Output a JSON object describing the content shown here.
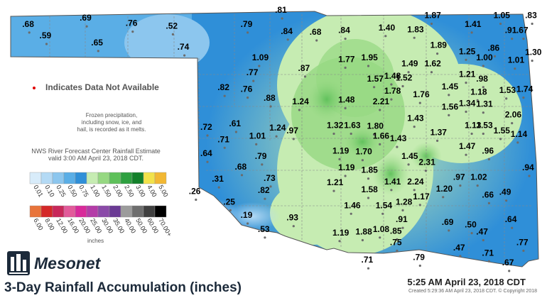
{
  "title": "3-Day Rainfall Accumulation (inches)",
  "timestamp": "5:25 AM April 23, 2018 CDT",
  "created": "Created 5:29:36 AM April 23, 2018 CDT. © Copyright 2018",
  "brand": "Mesonet",
  "na_note": "Indicates Data Not Available",
  "frozen_note": [
    "Frozen precipitation,",
    "including snow, ice, and",
    "hail, is recorded as it melts."
  ],
  "source_note": [
    "NWS River Forecast Center Rainfall Estimate",
    "valid 3:00 AM April 23, 2018 CDT."
  ],
  "legend_units": "inches",
  "legend_row1": [
    {
      "label": "0.01",
      "color": "#d8ecfa"
    },
    {
      "label": "0.10",
      "color": "#b4daf5"
    },
    {
      "label": "0.25",
      "color": "#8cc6ee"
    },
    {
      "label": "0.50",
      "color": "#5aaee6"
    },
    {
      "label": "0.75",
      "color": "#2f8fd8"
    },
    {
      "label": "1.00",
      "color": "#c6ecb2"
    },
    {
      "label": "1.50",
      "color": "#96d882"
    },
    {
      "label": "2.00",
      "color": "#5ec05a"
    },
    {
      "label": "2.50",
      "color": "#2ea040"
    },
    {
      "label": "3.00",
      "color": "#13802a"
    },
    {
      "label": "4.00",
      "color": "#f2e24a"
    },
    {
      "label": "5.00",
      "color": "#f2b833"
    }
  ],
  "legend_row2": [
    {
      "label": "6.00",
      "color": "#e8743a"
    },
    {
      "label": "8.00",
      "color": "#d42828"
    },
    {
      "label": "12.00",
      "color": "#c8285a"
    },
    {
      "label": "16.00",
      "color": "#e25a9a"
    },
    {
      "label": "20.00",
      "color": "#d82a9a"
    },
    {
      "label": "25.00",
      "color": "#b43ca8"
    },
    {
      "label": "30.00",
      "color": "#8a4aa8"
    },
    {
      "label": "35.00",
      "color": "#6a3a94"
    },
    {
      "label": "40.00",
      "color": "#9c9c9c"
    },
    {
      "label": "50.00",
      "color": "#6e6e6e"
    },
    {
      "label": "60.00",
      "color": "#404040"
    },
    {
      "label": "70.00+",
      "color": "#000000"
    }
  ],
  "stations": [
    {
      "value": ".68",
      "x": -102.8,
      "y": 36.88
    },
    {
      "value": ".59",
      "x": -102.5,
      "y": 36.75
    },
    {
      "value": ".69",
      "x": -101.8,
      "y": 36.95
    },
    {
      "value": ".65",
      "x": -101.6,
      "y": 36.67
    },
    {
      "value": ".76",
      "x": -101.0,
      "y": 36.89
    },
    {
      "value": ".52",
      "x": -100.3,
      "y": 36.86
    },
    {
      "value": ".74",
      "x": -100.1,
      "y": 36.62
    },
    {
      "value": ".81",
      "x": -98.4,
      "y": 37.04
    },
    {
      "value": ".79",
      "x": -99.0,
      "y": 36.88
    },
    {
      "value": ".84",
      "x": -98.3,
      "y": 36.8
    },
    {
      "value": ".68",
      "x": -97.8,
      "y": 36.79
    },
    {
      "value": ".84",
      "x": -97.3,
      "y": 36.81
    },
    {
      "value": "1.40",
      "x": -96.6,
      "y": 36.84
    },
    {
      "value": "1.83",
      "x": -96.1,
      "y": 36.82
    },
    {
      "value": "1.87",
      "x": -95.8,
      "y": 36.98
    },
    {
      "value": "1.41",
      "x": -95.1,
      "y": 36.88
    },
    {
      "value": "1.05",
      "x": -94.6,
      "y": 36.98
    },
    {
      "value": ".83",
      "x": -94.05,
      "y": 36.98
    },
    {
      "value": ".91",
      "x": -94.4,
      "y": 36.81
    },
    {
      "value": ".67",
      "x": -94.2,
      "y": 36.81
    },
    {
      "value": "1.09",
      "x": -98.8,
      "y": 36.5
    },
    {
      "value": ".87",
      "x": -98.0,
      "y": 36.38
    },
    {
      "value": "1.77",
      "x": -97.3,
      "y": 36.48
    },
    {
      "value": "1.95",
      "x": -96.9,
      "y": 36.5
    },
    {
      "value": "1.49",
      "x": -96.2,
      "y": 36.43
    },
    {
      "value": "1.62",
      "x": -95.8,
      "y": 36.43
    },
    {
      "value": "1.89",
      "x": -95.7,
      "y": 36.64
    },
    {
      "value": "1.25",
      "x": -95.2,
      "y": 36.57
    },
    {
      "value": "1.00",
      "x": -94.9,
      "y": 36.5
    },
    {
      "value": ".86",
      "x": -94.7,
      "y": 36.61
    },
    {
      "value": "1.01",
      "x": -94.35,
      "y": 36.47
    },
    {
      "value": "1.30",
      "x": -94.05,
      "y": 36.56
    },
    {
      "value": ".77",
      "x": -98.9,
      "y": 36.33
    },
    {
      "value": ".82",
      "x": -99.4,
      "y": 36.16
    },
    {
      "value": ".76",
      "x": -99.0,
      "y": 36.14
    },
    {
      "value": ".88",
      "x": -98.6,
      "y": 36.04
    },
    {
      "value": "1.24",
      "x": -98.1,
      "y": 36.0
    },
    {
      "value": "1.48",
      "x": -97.3,
      "y": 36.02
    },
    {
      "value": "1.57",
      "x": -96.8,
      "y": 36.26
    },
    {
      "value": "1.48",
      "x": -96.5,
      "y": 36.29
    },
    {
      "value": "1.52",
      "x": -96.3,
      "y": 36.27
    },
    {
      "value": "1.78",
      "x": -96.5,
      "y": 36.12
    },
    {
      "value": "2.21",
      "x": -96.7,
      "y": 36.0
    },
    {
      "value": "1.76",
      "x": -96.0,
      "y": 36.08
    },
    {
      "value": "1.45",
      "x": -95.5,
      "y": 36.17
    },
    {
      "value": "1.21",
      "x": -95.2,
      "y": 36.31
    },
    {
      "value": ".98",
      "x": -94.9,
      "y": 36.26
    },
    {
      "value": "1.18",
      "x": -95.0,
      "y": 36.11
    },
    {
      "value": "1.53",
      "x": -94.5,
      "y": 36.13
    },
    {
      "value": "1.74",
      "x": -94.2,
      "y": 36.14
    },
    {
      "value": "1.56",
      "x": -95.5,
      "y": 35.94
    },
    {
      "value": "1.34",
      "x": -95.2,
      "y": 35.98
    },
    {
      "value": "1.31",
      "x": -94.9,
      "y": 35.97
    },
    {
      "value": "2.06",
      "x": -94.4,
      "y": 35.85
    },
    {
      "value": ".72",
      "x": -99.7,
      "y": 35.71
    },
    {
      "value": ".61",
      "x": -99.2,
      "y": 35.75
    },
    {
      "value": ".71",
      "x": -99.4,
      "y": 35.57
    },
    {
      "value": "1.01",
      "x": -98.85,
      "y": 35.61
    },
    {
      "value": "1.24",
      "x": -98.5,
      "y": 35.7
    },
    {
      "value": ".97",
      "x": -98.2,
      "y": 35.67
    },
    {
      "value": "1.32",
      "x": -97.5,
      "y": 35.73
    },
    {
      "value": "1.63",
      "x": -97.2,
      "y": 35.73
    },
    {
      "value": "1.80",
      "x": -96.8,
      "y": 35.72
    },
    {
      "value": "1.66",
      "x": -96.7,
      "y": 35.61
    },
    {
      "value": "1.43",
      "x": -96.1,
      "y": 35.81
    },
    {
      "value": "1.43",
      "x": -96.4,
      "y": 35.58
    },
    {
      "value": "1.37",
      "x": -95.7,
      "y": 35.65
    },
    {
      "value": "1.13",
      "x": -95.1,
      "y": 35.73
    },
    {
      "value": "1.53",
      "x": -94.9,
      "y": 35.73
    },
    {
      "value": "1.55",
      "x": -94.6,
      "y": 35.67
    },
    {
      "value": "1.14",
      "x": -94.3,
      "y": 35.63
    },
    {
      "value": ".64",
      "x": -99.7,
      "y": 35.41
    },
    {
      "value": ".79",
      "x": -98.75,
      "y": 35.38
    },
    {
      "value": "1.19",
      "x": -97.4,
      "y": 35.44
    },
    {
      "value": "1.70",
      "x": -97.0,
      "y": 35.43
    },
    {
      "value": "1.45",
      "x": -96.2,
      "y": 35.38
    },
    {
      "value": "2.31",
      "x": -95.9,
      "y": 35.31
    },
    {
      "value": "1.47",
      "x": -95.2,
      "y": 35.49
    },
    {
      "value": ".96",
      "x": -94.8,
      "y": 35.44
    },
    {
      "value": ".94",
      "x": -94.1,
      "y": 35.25
    },
    {
      "value": ".68",
      "x": -99.1,
      "y": 35.26
    },
    {
      "value": "1.19",
      "x": -97.3,
      "y": 35.25
    },
    {
      "value": "1.85",
      "x": -96.9,
      "y": 35.22
    },
    {
      "value": ".31",
      "x": -99.5,
      "y": 35.12
    },
    {
      "value": ".73",
      "x": -98.6,
      "y": 35.13
    },
    {
      "value": "1.21",
      "x": -97.5,
      "y": 35.08
    },
    {
      "value": "1.41",
      "x": -96.5,
      "y": 35.09
    },
    {
      "value": "2.24",
      "x": -96.1,
      "y": 35.09
    },
    {
      "value": ".97",
      "x": -95.3,
      "y": 35.14
    },
    {
      "value": "1.02",
      "x": -95.0,
      "y": 35.14
    },
    {
      "value": ".26",
      "x": -99.9,
      "y": 34.98
    },
    {
      "value": ".82",
      "x": -98.7,
      "y": 34.99
    },
    {
      "value": "1.58",
      "x": -96.9,
      "y": 35.0
    },
    {
      "value": "1.20",
      "x": -95.6,
      "y": 35.01
    },
    {
      "value": ".66",
      "x": -94.8,
      "y": 34.94
    },
    {
      "value": ".49",
      "x": -94.5,
      "y": 34.97
    },
    {
      "value": ".25",
      "x": -99.3,
      "y": 34.86
    },
    {
      "value": "1.17",
      "x": -96.0,
      "y": 34.92
    },
    {
      "value": "1.46",
      "x": -97.2,
      "y": 34.82
    },
    {
      "value": "1.54",
      "x": -96.65,
      "y": 34.82
    },
    {
      "value": "1.28",
      "x": -96.3,
      "y": 34.86
    },
    {
      "value": ".19",
      "x": -99.0,
      "y": 34.71
    },
    {
      "value": ".93",
      "x": -98.2,
      "y": 34.68
    },
    {
      "value": ".91",
      "x": -96.3,
      "y": 34.66
    },
    {
      "value": ".69",
      "x": -95.5,
      "y": 34.63
    },
    {
      "value": ".50",
      "x": -95.1,
      "y": 34.6
    },
    {
      "value": ".64",
      "x": -94.4,
      "y": 34.66
    },
    {
      "value": ".53",
      "x": -98.7,
      "y": 34.55
    },
    {
      "value": "1.19",
      "x": -97.4,
      "y": 34.51
    },
    {
      "value": "1.88",
      "x": -97.0,
      "y": 34.52
    },
    {
      "value": "1.08",
      "x": -96.7,
      "y": 34.55
    },
    {
      "value": ".85",
      "x": -96.4,
      "y": 34.53
    },
    {
      "value": ".47",
      "x": -94.9,
      "y": 34.52
    },
    {
      "value": ".75",
      "x": -96.4,
      "y": 34.4
    },
    {
      "value": ".77",
      "x": -94.2,
      "y": 34.4
    },
    {
      "value": ".47",
      "x": -95.3,
      "y": 34.34
    },
    {
      "value": ".71",
      "x": -94.8,
      "y": 34.28
    },
    {
      "value": ".79",
      "x": -96.0,
      "y": 34.23
    },
    {
      "value": ".71",
      "x": -96.9,
      "y": 34.2
    },
    {
      "value": ".67",
      "x": -94.45,
      "y": 34.17
    }
  ]
}
